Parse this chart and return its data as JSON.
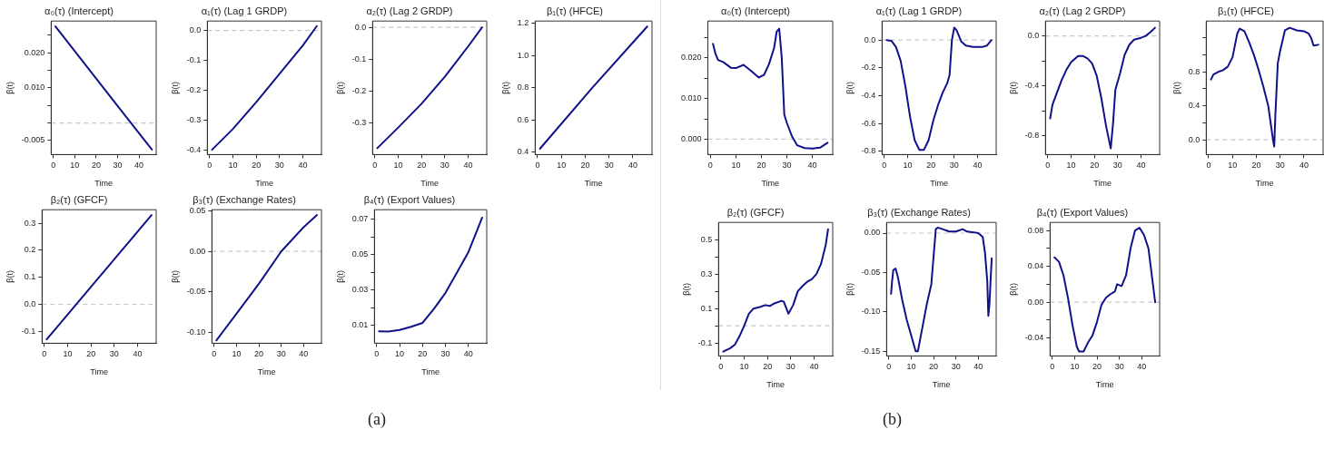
{
  "chart_data": [
    {
      "type": "line",
      "title": "α₀(τ) (Intercept)",
      "xlabel": "Time",
      "ylabel": "β(t)",
      "xlim": [
        -1,
        48
      ],
      "xticks": [
        0,
        10,
        20,
        30,
        40
      ],
      "ylim": [
        -0.009,
        0.029
      ],
      "yticks": [
        {
          "value": -0.005,
          "label": "-0.005"
        },
        {
          "value": 0,
          "label": null
        },
        {
          "value": 0.005,
          "label": null
        },
        {
          "value": 0.01,
          "label": "0.010"
        },
        {
          "value": 0.015,
          "label": null
        },
        {
          "value": 0.02,
          "label": "0.020"
        },
        {
          "value": 0.025,
          "label": null
        }
      ],
      "ref_lines": [
        {
          "axis": "y",
          "value": 0,
          "color": "#c8c8c8",
          "line_style": "dashed"
        }
      ],
      "annotations": [
        "(a)"
      ],
      "series": [
        {
          "color": "#11118c",
          "x": [
            1,
            12,
            23,
            34,
            46
          ],
          "values": [
            0.0275,
            0.0189,
            0.0103,
            0.0017,
            -0.0076
          ]
        }
      ]
    },
    {
      "type": "line",
      "title": "α₁(τ) (Lag 1 GRDP)",
      "xlabel": "Time",
      "ylabel": "β(t)",
      "xlim": [
        -1,
        48
      ],
      "xticks": [
        0,
        10,
        20,
        30,
        40
      ],
      "ylim": [
        -0.416,
        0.032
      ],
      "yticks": [
        {
          "value": -0.4,
          "label": "-0.4"
        },
        {
          "value": -0.3,
          "label": "-0.3"
        },
        {
          "value": -0.2,
          "label": "-0.2"
        },
        {
          "value": -0.1,
          "label": "-0.1"
        },
        {
          "value": 0,
          "label": "0.0"
        }
      ],
      "ref_lines": [
        {
          "axis": "y",
          "value": 0,
          "color": "#c8c8c8",
          "line_style": "dashed"
        }
      ],
      "series": [
        {
          "color": "#11118c",
          "x": [
            1,
            10,
            20,
            30,
            40,
            46
          ],
          "values": [
            -0.4,
            -0.33,
            -0.24,
            -0.145,
            -0.05,
            0.015
          ]
        }
      ]
    },
    {
      "type": "line",
      "title": "α₂(τ) (Lag 2 GRDP)",
      "xlabel": "Time",
      "ylabel": "β(t)",
      "xlim": [
        -1,
        48
      ],
      "xticks": [
        0,
        10,
        20,
        30,
        40
      ],
      "ylim": [
        -0.4,
        0.02
      ],
      "yticks": [
        {
          "value": -0.3,
          "label": "-0.3"
        },
        {
          "value": -0.2,
          "label": "-0.2"
        },
        {
          "value": -0.1,
          "label": "-0.1"
        },
        {
          "value": 0,
          "label": "0.0"
        }
      ],
      "ref_lines": [
        {
          "axis": "y",
          "value": 0,
          "color": "#c8c8c8",
          "line_style": "dashed"
        }
      ],
      "series": [
        {
          "color": "#11118c",
          "x": [
            1,
            10,
            20,
            30,
            40,
            46
          ],
          "values": [
            -0.38,
            -0.315,
            -0.24,
            -0.155,
            -0.06,
            0.0
          ]
        }
      ]
    },
    {
      "type": "line",
      "title": "β₁(τ) (HFCE)",
      "xlabel": "Time",
      "ylabel": "β(t)",
      "xlim": [
        -1,
        48
      ],
      "xticks": [
        0,
        10,
        20,
        30,
        40
      ],
      "ylim": [
        0.384,
        1.214
      ],
      "yticks": [
        {
          "value": 0.4,
          "label": "0.4"
        },
        {
          "value": 0.6,
          "label": "0.6"
        },
        {
          "value": 0.8,
          "label": "0.8"
        },
        {
          "value": 1.0,
          "label": "1.0"
        },
        {
          "value": 1.2,
          "label": "1.2"
        }
      ],
      "series": [
        {
          "color": "#11118c",
          "x": [
            1,
            23,
            46
          ],
          "values": [
            0.42,
            0.8,
            1.18
          ]
        }
      ]
    },
    {
      "type": "line",
      "title": "β₂(τ) (GFCF)",
      "xlabel": "Time",
      "ylabel": "β(t)",
      "xlim": [
        -1,
        48
      ],
      "xticks": [
        0,
        10,
        20,
        30,
        40
      ],
      "ylim": [
        -0.144,
        0.35
      ],
      "yticks": [
        {
          "value": -0.1,
          "label": "-0.1"
        },
        {
          "value": 0,
          "label": "0.0"
        },
        {
          "value": 0.1,
          "label": "0.1"
        },
        {
          "value": 0.2,
          "label": "0.2"
        },
        {
          "value": 0.3,
          "label": "0.3"
        }
      ],
      "ref_lines": [
        {
          "axis": "y",
          "value": 0,
          "color": "#c8c8c8",
          "line_style": "dashed"
        }
      ],
      "series": [
        {
          "color": "#11118c",
          "x": [
            1,
            23,
            46
          ],
          "values": [
            -0.13,
            0.095,
            0.33
          ]
        }
      ]
    },
    {
      "type": "line",
      "title": "β₃(τ) (Exchange Rates)",
      "xlabel": "Time",
      "ylabel": "β(t)",
      "xlim": [
        -1,
        48
      ],
      "xticks": [
        0,
        10,
        20,
        30,
        40
      ],
      "ylim": [
        -0.1135,
        0.0516
      ],
      "yticks": [
        {
          "value": -0.1,
          "label": "-0.10"
        },
        {
          "value": -0.05,
          "label": "-0.05"
        },
        {
          "value": 0,
          "label": "0.00"
        },
        {
          "value": 0.05,
          "label": "0.05"
        }
      ],
      "ref_lines": [
        {
          "axis": "y",
          "value": 0,
          "color": "#c8c8c8",
          "line_style": "dashed"
        }
      ],
      "series": [
        {
          "color": "#11118c",
          "x": [
            1,
            10,
            20,
            30,
            40,
            46
          ],
          "values": [
            -0.11,
            -0.077,
            -0.04,
            0.0,
            0.03,
            0.045
          ]
        }
      ]
    },
    {
      "type": "line",
      "title": "β₄(τ) (Export Values)",
      "xlabel": "Time",
      "ylabel": "β(t)",
      "xlim": [
        -1,
        48
      ],
      "xticks": [
        0,
        10,
        20,
        30,
        40
      ],
      "ylim": [
        0,
        0.0755
      ],
      "yticks": [
        {
          "value": 0.01,
          "label": "0.01"
        },
        {
          "value": 0.02,
          "label": null
        },
        {
          "value": 0.03,
          "label": "0.03"
        },
        {
          "value": 0.04,
          "label": null
        },
        {
          "value": 0.05,
          "label": "0.05"
        },
        {
          "value": 0.06,
          "label": null
        },
        {
          "value": 0.07,
          "label": "0.07"
        }
      ],
      "ref_lines": [
        {
          "axis": "y",
          "value": 0,
          "color": "#c8c8c8",
          "line_style": "dashed"
        }
      ],
      "series": [
        {
          "color": "#11118c",
          "x": [
            1,
            5,
            10,
            15,
            20,
            25,
            30,
            35,
            40,
            46
          ],
          "values": [
            0.0068,
            0.0066,
            0.0075,
            0.0093,
            0.0115,
            0.0195,
            0.0285,
            0.04,
            0.0515,
            0.071
          ]
        }
      ]
    },
    {
      "type": "line",
      "title": "α₀(τ) (Intercept)",
      "xlabel": "Time",
      "xlim": [
        -1,
        48
      ],
      "xticks": [
        0,
        10,
        20,
        30,
        40
      ],
      "ylim": [
        -0.0038,
        0.0291
      ],
      "yticks": [
        {
          "value": 0,
          "label": "0.000"
        },
        {
          "value": 0.005,
          "label": null
        },
        {
          "value": 0.01,
          "label": "0.010"
        },
        {
          "value": 0.015,
          "label": null
        },
        {
          "value": 0.02,
          "label": "0.020"
        },
        {
          "value": 0.025,
          "label": null
        }
      ],
      "ref_lines": [
        {
          "axis": "y",
          "value": 0,
          "color": "#c8c8c8",
          "line_style": "dashed"
        }
      ],
      "annotations": [
        "(b)"
      ],
      "series": [
        {
          "color": "#11118c",
          "x": [
            1,
            2,
            3,
            5,
            8,
            10,
            13,
            16,
            19,
            21,
            23,
            25,
            26,
            27,
            28,
            29,
            30,
            32,
            34,
            37,
            40,
            43,
            46
          ],
          "values": [
            0.0235,
            0.021,
            0.0195,
            0.019,
            0.0176,
            0.0175,
            0.0183,
            0.0168,
            0.0152,
            0.0158,
            0.0185,
            0.0225,
            0.0265,
            0.0272,
            0.02,
            0.006,
            0.004,
            0.0007,
            -0.0015,
            -0.0022,
            -0.0023,
            -0.0021,
            -0.0009
          ]
        }
      ]
    },
    {
      "type": "line",
      "title": "α₁(τ) (Lag 1 GRDP)",
      "xlabel": "Time",
      "ylabel": "β(t)",
      "xlim": [
        -1,
        48
      ],
      "xticks": [
        0,
        10,
        20,
        30,
        40
      ],
      "ylim": [
        -0.824,
        0.137
      ],
      "yticks": [
        {
          "value": -0.8,
          "label": "-0.8"
        },
        {
          "value": -0.6,
          "label": "-0.6"
        },
        {
          "value": -0.4,
          "label": "-0.4"
        },
        {
          "value": -0.2,
          "label": "-0.2"
        },
        {
          "value": 0,
          "label": "0.0"
        }
      ],
      "ref_lines": [
        {
          "axis": "y",
          "value": 0,
          "color": "#c8c8c8",
          "line_style": "dashed"
        }
      ],
      "series": [
        {
          "color": "#11118c",
          "x": [
            1,
            3,
            5,
            7,
            9,
            11,
            13,
            15,
            17,
            19,
            21,
            23,
            25,
            27,
            28,
            29,
            30,
            31,
            33,
            35,
            38,
            42,
            44,
            46
          ],
          "values": [
            0.0,
            -0.005,
            -0.05,
            -0.15,
            -0.33,
            -0.55,
            -0.72,
            -0.79,
            -0.79,
            -0.72,
            -0.58,
            -0.47,
            -0.38,
            -0.31,
            -0.25,
            0.0,
            0.09,
            0.07,
            -0.01,
            -0.04,
            -0.05,
            -0.05,
            -0.04,
            0.0
          ]
        }
      ]
    },
    {
      "type": "line",
      "title": "α₂(τ) (Lag 2 GRDP)",
      "xlabel": "Time",
      "ylabel": "β(t)",
      "xlim": [
        -1,
        48
      ],
      "xticks": [
        0,
        10,
        20,
        30,
        40
      ],
      "ylim": [
        -0.949,
        0.119
      ],
      "yticks": [
        {
          "value": -0.8,
          "label": "-0.8"
        },
        {
          "value": -0.6,
          "label": null
        },
        {
          "value": -0.4,
          "label": "-0.4"
        },
        {
          "value": -0.2,
          "label": null
        },
        {
          "value": 0,
          "label": "0.0"
        }
      ],
      "ref_lines": [
        {
          "axis": "y",
          "value": 0,
          "color": "#c8c8c8",
          "line_style": "dashed"
        }
      ],
      "series": [
        {
          "color": "#11118c",
          "x": [
            1,
            2,
            4,
            6,
            8,
            10,
            13,
            15,
            17,
            19,
            21,
            23,
            25,
            27,
            28,
            29,
            31,
            33,
            35,
            37,
            40,
            42,
            44,
            46
          ],
          "values": [
            -0.66,
            -0.55,
            -0.45,
            -0.35,
            -0.27,
            -0.21,
            -0.16,
            -0.16,
            -0.18,
            -0.22,
            -0.32,
            -0.5,
            -0.72,
            -0.9,
            -0.7,
            -0.43,
            -0.3,
            -0.15,
            -0.07,
            -0.03,
            -0.015,
            0.0,
            0.03,
            0.065
          ]
        }
      ]
    },
    {
      "type": "line",
      "title": "β₁(τ) (HFCE)",
      "xlabel": "Time",
      "ylabel": "β(t)",
      "xlim": [
        -1,
        48
      ],
      "xticks": [
        0,
        10,
        20,
        30,
        40
      ],
      "ylim": [
        -0.175,
        1.4
      ],
      "yticks": [
        {
          "value": 0,
          "label": "0.0"
        },
        {
          "value": 0.2,
          "label": null
        },
        {
          "value": 0.4,
          "label": "0.4"
        },
        {
          "value": 0.6,
          "label": null
        },
        {
          "value": 0.8,
          "label": "0.8"
        },
        {
          "value": 1.0,
          "label": null
        },
        {
          "value": 1.2,
          "label": null
        }
      ],
      "ref_lines": [
        {
          "axis": "y",
          "value": 0,
          "color": "#c8c8c8",
          "line_style": "dashed"
        }
      ],
      "series": [
        {
          "color": "#11118c",
          "x": [
            1,
            2,
            4,
            6,
            8,
            10,
            12,
            13,
            15,
            17,
            19,
            21,
            23,
            25,
            26,
            27,
            27.5,
            28,
            29,
            30,
            32,
            34,
            37,
            40,
            42,
            43,
            44,
            46
          ],
          "values": [
            0.71,
            0.77,
            0.8,
            0.82,
            0.86,
            0.97,
            1.25,
            1.31,
            1.28,
            1.15,
            1.0,
            0.82,
            0.62,
            0.4,
            0.2,
            0.0,
            -0.08,
            0.3,
            0.9,
            1.05,
            1.29,
            1.32,
            1.29,
            1.28,
            1.25,
            1.2,
            1.11,
            1.12
          ]
        }
      ]
    },
    {
      "type": "line",
      "title": "β₂(τ) (GFCF)",
      "xlabel": "Time",
      "ylabel": "β(t)",
      "xlim": [
        -1,
        48
      ],
      "xticks": [
        0,
        10,
        20,
        30,
        40
      ],
      "ylim": [
        -0.175,
        0.6
      ],
      "yticks": [
        {
          "value": -0.1,
          "label": "-0.1"
        },
        {
          "value": 0,
          "label": null
        },
        {
          "value": 0.1,
          "label": "0.1"
        },
        {
          "value": 0.2,
          "label": null
        },
        {
          "value": 0.3,
          "label": "0.3"
        },
        {
          "value": 0.4,
          "label": null
        },
        {
          "value": 0.5,
          "label": "0.5"
        }
      ],
      "ref_lines": [
        {
          "axis": "y",
          "value": 0,
          "color": "#c8c8c8",
          "line_style": "dashed"
        }
      ],
      "series": [
        {
          "color": "#11118c",
          "x": [
            1,
            4,
            6,
            8,
            10,
            12,
            14,
            17,
            19,
            21,
            23,
            26,
            27,
            29,
            31,
            33,
            35,
            37,
            39,
            41,
            43,
            45,
            46
          ],
          "values": [
            -0.15,
            -0.13,
            -0.11,
            -0.06,
            0.0,
            0.07,
            0.1,
            0.11,
            0.12,
            0.115,
            0.13,
            0.145,
            0.14,
            0.07,
            0.12,
            0.2,
            0.23,
            0.255,
            0.27,
            0.3,
            0.36,
            0.47,
            0.56
          ]
        }
      ]
    },
    {
      "type": "line",
      "title": "β₃(τ) (Exchange Rates)",
      "xlabel": "Time",
      "ylabel": "β(t)",
      "xlim": [
        -1,
        48
      ],
      "xticks": [
        0,
        10,
        20,
        30,
        40
      ],
      "ylim": [
        -0.156,
        0.0136
      ],
      "yticks": [
        {
          "value": -0.15,
          "label": "-0.15"
        },
        {
          "value": -0.1,
          "label": "-0.10"
        },
        {
          "value": -0.05,
          "label": "-0.05"
        },
        {
          "value": 0,
          "label": "0.00"
        }
      ],
      "ref_lines": [
        {
          "axis": "y",
          "value": 0,
          "color": "#c8c8c8",
          "line_style": "dashed"
        }
      ],
      "series": [
        {
          "color": "#11118c",
          "x": [
            1,
            1.5,
            2,
            3,
            4,
            6,
            8,
            10,
            12,
            13,
            15,
            17,
            19,
            20,
            21,
            22,
            24,
            27,
            30,
            33,
            35,
            38,
            40,
            42,
            43,
            44,
            44.5,
            45,
            45.5,
            46
          ],
          "values": [
            -0.077,
            -0.06,
            -0.047,
            -0.045,
            -0.055,
            -0.085,
            -0.11,
            -0.13,
            -0.15,
            -0.15,
            -0.12,
            -0.09,
            -0.065,
            -0.03,
            0.005,
            0.007,
            0.005,
            0.002,
            0.002,
            0.005,
            0.002,
            0.001,
            0.0,
            -0.005,
            -0.025,
            -0.06,
            -0.105,
            -0.09,
            -0.06,
            -0.032
          ]
        }
      ]
    },
    {
      "type": "line",
      "title": "β₄(τ) (Export Values)",
      "xlabel": "Time",
      "ylabel": "β(t)",
      "xlim": [
        -1,
        48
      ],
      "xticks": [
        0,
        10,
        20,
        30,
        40
      ],
      "ylim": [
        -0.06,
        0.089
      ],
      "yticks": [
        {
          "value": -0.04,
          "label": "-0.04"
        },
        {
          "value": -0.02,
          "label": null
        },
        {
          "value": 0,
          "label": "0.00"
        },
        {
          "value": 0.02,
          "label": null
        },
        {
          "value": 0.04,
          "label": "0.04"
        },
        {
          "value": 0.06,
          "label": null
        },
        {
          "value": 0.08,
          "label": "0.08"
        }
      ],
      "ref_lines": [
        {
          "axis": "y",
          "value": 0,
          "color": "#c8c8c8",
          "line_style": "dashed"
        }
      ],
      "series": [
        {
          "color": "#11118c",
          "x": [
            1,
            3,
            5,
            7,
            9,
            11,
            12,
            14,
            16,
            18,
            20,
            22,
            24,
            26,
            28,
            29,
            31,
            33,
            35,
            37,
            39,
            41,
            43,
            44,
            45,
            46
          ],
          "values": [
            0.05,
            0.045,
            0.03,
            0.005,
            -0.025,
            -0.05,
            -0.055,
            -0.055,
            -0.045,
            -0.037,
            -0.022,
            -0.003,
            0.005,
            0.009,
            0.012,
            0.02,
            0.018,
            0.03,
            0.06,
            0.08,
            0.083,
            0.075,
            0.06,
            0.04,
            0.02,
            0.0
          ]
        }
      ]
    }
  ]
}
